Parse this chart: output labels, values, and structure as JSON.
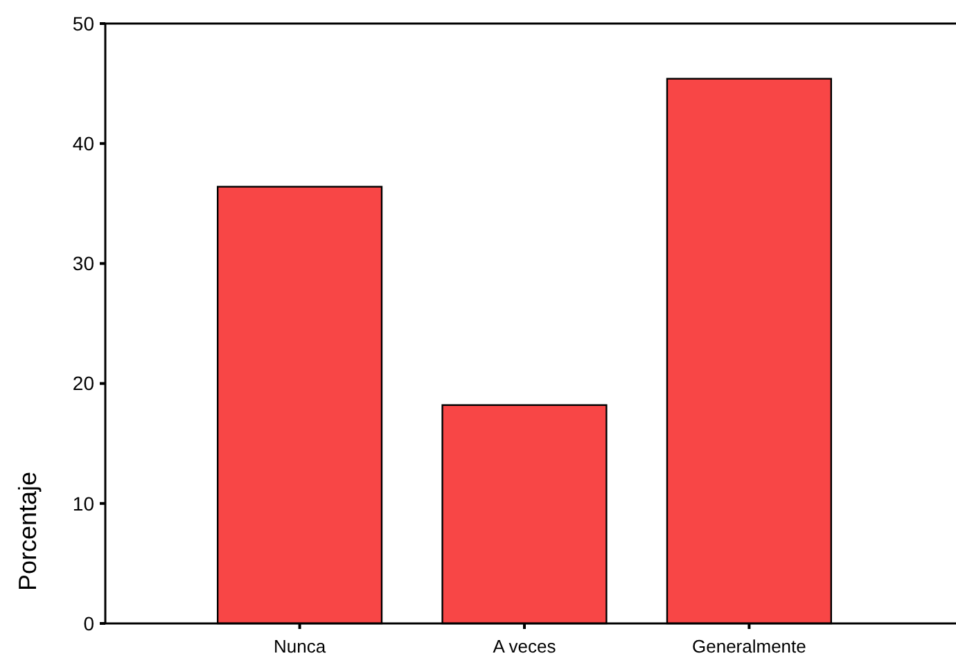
{
  "chart_data": {
    "type": "bar",
    "ylabel": "Porcentaje",
    "categories": [
      "Nunca",
      "A veces",
      "Generalmente"
    ],
    "values": [
      36.4,
      18.2,
      45.4
    ],
    "color": "#f84646",
    "ylim": [
      0,
      50
    ],
    "yticks": [
      0,
      10,
      20,
      30,
      40,
      50
    ],
    "grid": false
  }
}
